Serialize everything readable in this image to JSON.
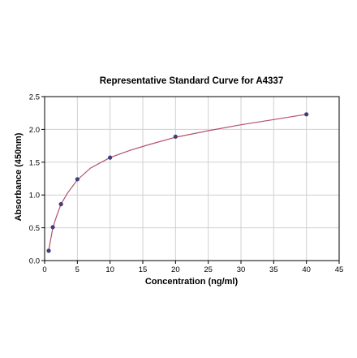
{
  "chart_data": {
    "type": "scatter",
    "title": "Representative Standard Curve for A4337",
    "xlabel": "Concentration (ng/ml)",
    "ylabel": "Absorbance (450nm)",
    "xlim": [
      0,
      45
    ],
    "ylim": [
      0,
      2.5
    ],
    "x_ticks": [
      "0",
      "5",
      "10",
      "15",
      "20",
      "25",
      "30",
      "35",
      "40",
      "45"
    ],
    "y_ticks": [
      "0.0",
      "0.5",
      "1.0",
      "1.5",
      "2.0",
      "2.5"
    ],
    "grid": true,
    "legend": "none",
    "series": [
      {
        "points": [
          {
            "x": 0.625,
            "y": 0.15
          },
          {
            "x": 1.25,
            "y": 0.51
          },
          {
            "x": 2.5,
            "y": 0.86
          },
          {
            "x": 5,
            "y": 1.24
          },
          {
            "x": 10,
            "y": 1.57
          },
          {
            "x": 20,
            "y": 1.89
          },
          {
            "x": 40,
            "y": 2.23
          }
        ]
      }
    ],
    "fit_curve": [
      {
        "x": 0.625,
        "y": 0.15
      },
      {
        "x": 0.9,
        "y": 0.31
      },
      {
        "x": 1.25,
        "y": 0.5
      },
      {
        "x": 1.8,
        "y": 0.67
      },
      {
        "x": 2.5,
        "y": 0.86
      },
      {
        "x": 3.5,
        "y": 1.03
      },
      {
        "x": 5,
        "y": 1.23
      },
      {
        "x": 7,
        "y": 1.41
      },
      {
        "x": 10,
        "y": 1.57
      },
      {
        "x": 13,
        "y": 1.68
      },
      {
        "x": 16,
        "y": 1.77
      },
      {
        "x": 20,
        "y": 1.88
      },
      {
        "x": 25,
        "y": 1.98
      },
      {
        "x": 30,
        "y": 2.07
      },
      {
        "x": 35,
        "y": 2.15
      },
      {
        "x": 40,
        "y": 2.23
      }
    ],
    "colors": {
      "points": "#3b3f7a",
      "curve": "#b5506a",
      "grid": "#d0d0d0",
      "axis": "#000000"
    }
  }
}
